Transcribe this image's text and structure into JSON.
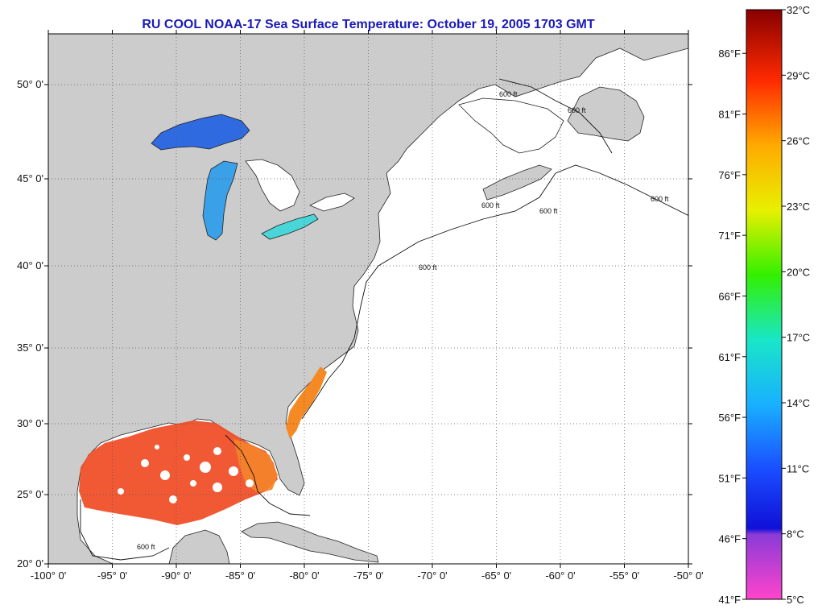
{
  "title": "RU COOL  NOAA-17  Sea Surface Temperature:  October 19, 2005 1703 GMT",
  "colors": {
    "land": "#cccccc",
    "ocean_no_data": "#ffffff",
    "title": "#1a1ab8",
    "gulf_warm": "#f0502a",
    "lakes_cold": "#2a6ae6"
  },
  "axes": {
    "x_ticks": [
      "-100° 0'",
      "-95° 0'",
      "-90° 0'",
      "-85° 0'",
      "-80° 0'",
      "-75° 0'",
      "-70° 0'",
      "-65° 0'",
      "-60° 0'",
      "-55° 0'",
      "-50° 0'"
    ],
    "y_ticks": [
      "50° 0'",
      "45° 0'",
      "40° 0'",
      "35° 0'",
      "30° 0'",
      "25° 0'",
      "20° 0'"
    ]
  },
  "isobath_label": "600 ft",
  "colorbar": {
    "celsius": [
      "32°C",
      "29°C",
      "26°C",
      "23°C",
      "20°C",
      "17°C",
      "14°C",
      "11°C",
      "8°C",
      "5°C"
    ],
    "fahrenheit": [
      "86°F",
      "81°F",
      "76°F",
      "71°F",
      "66°F",
      "61°F",
      "56°F",
      "51°F",
      "46°F",
      "41°F"
    ]
  }
}
